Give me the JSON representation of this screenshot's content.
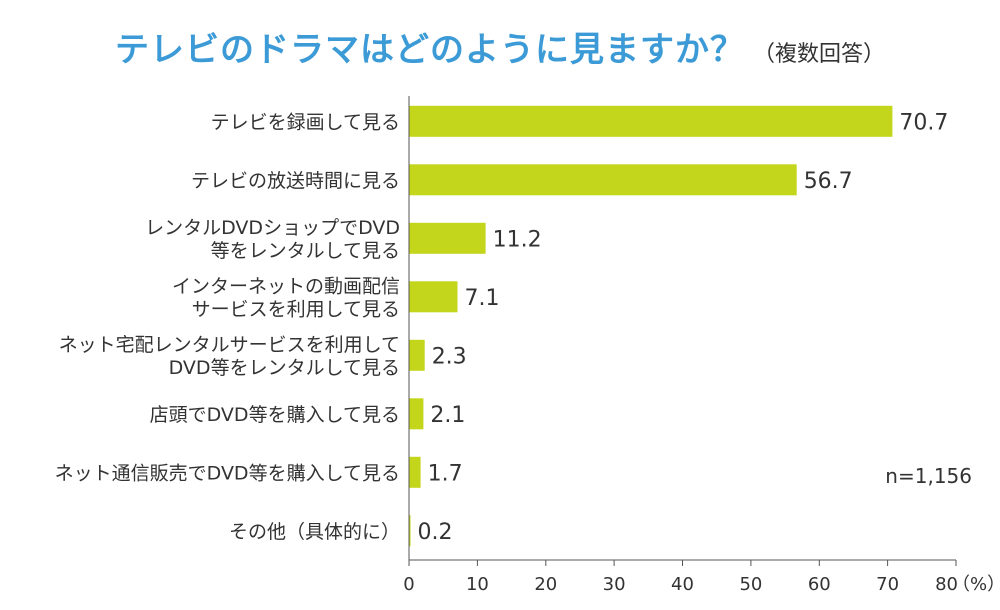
{
  "title": "テレビのドラマはどのように見ますか？",
  "subtitle": "（複数回答）",
  "note": "n=1,156",
  "chart_data": {
    "type": "bar",
    "orientation": "horizontal",
    "title": "テレビのドラマはどのように見ますか？",
    "subtitle": "（複数回答）",
    "categories": [
      [
        "テレビを録画して見る"
      ],
      [
        "テレビの放送時間に見る"
      ],
      [
        "レンタルDVDショップでDVD",
        "等をレンタルして見る"
      ],
      [
        "インターネットの動画配信",
        "サービスを利用して見る"
      ],
      [
        "ネット宅配レンタルサービスを利用して",
        "DVD等をレンタルして見る"
      ],
      [
        "店頭でDVD等を購入して見る"
      ],
      [
        "ネット通信販売でDVD等を購入して見る"
      ],
      [
        "その他（具体的に）"
      ]
    ],
    "values": [
      70.7,
      56.7,
      11.2,
      7.1,
      2.3,
      2.1,
      1.7,
      0.2
    ],
    "value_labels": [
      "70.7",
      "56.7",
      "11.2",
      "7.1",
      "2.3",
      "2.1",
      "1.7",
      "0.2"
    ],
    "xlim": [
      0,
      80
    ],
    "xticks": [
      "0",
      "10",
      "20",
      "30",
      "40",
      "50",
      "60",
      "70",
      "80"
    ],
    "xunit": "（%）",
    "bar_color": "#c3d61b",
    "grid": false,
    "legend": "none"
  }
}
